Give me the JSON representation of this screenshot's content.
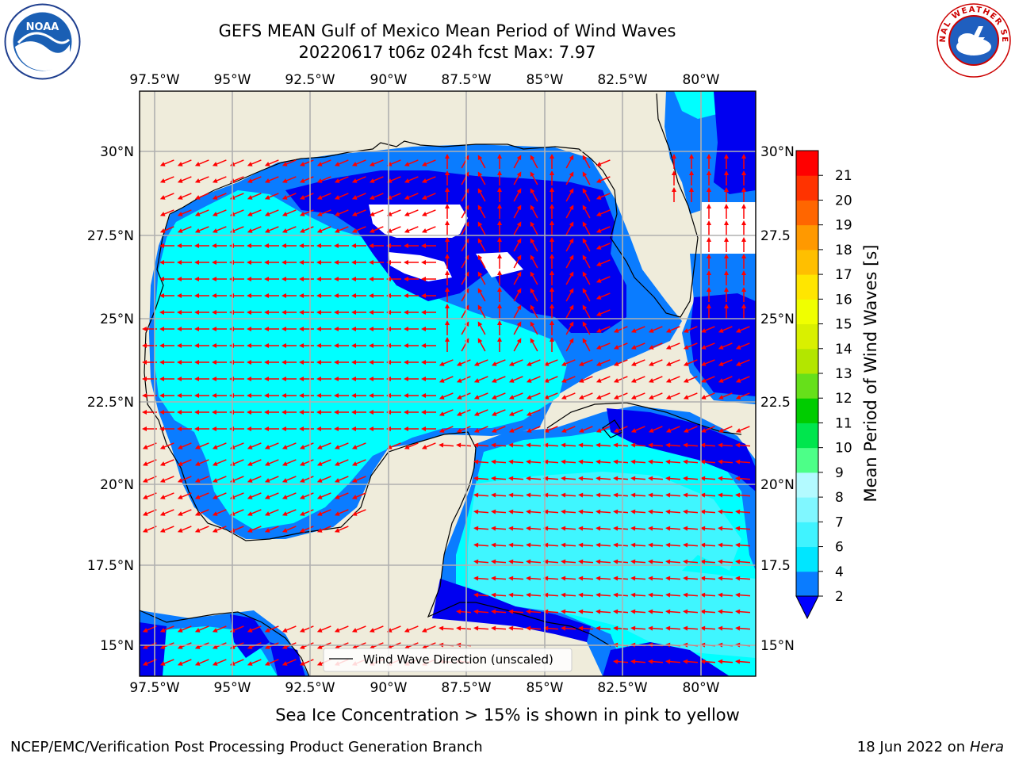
{
  "title": {
    "line1": "GEFS MEAN Gulf of Mexico Mean Period of Wind Waves",
    "line2": "20220617 t06z 024h fcst   Max: 7.97"
  },
  "axes": {
    "lon_labels": [
      "97.5°W",
      "95°W",
      "92.5°W",
      "90°W",
      "87.5°W",
      "85°W",
      "82.5°W",
      "80°W"
    ],
    "lat_labels_left": [
      "30°N",
      "27.5°N",
      "25°N",
      "22.5°N",
      "20°N",
      "17.5°N",
      "15°N"
    ],
    "lat_labels_right": [
      "30°N",
      "27.5",
      "25°N",
      "22.5",
      "20°N",
      "17.5",
      "15°N"
    ]
  },
  "legend": {
    "label": "Wind Wave Direction (unscaled)"
  },
  "colorbar": {
    "label": "Mean Period of Wind Waves [s]",
    "ticks": [
      "2",
      "4",
      "6",
      "7",
      "8",
      "9",
      "10",
      "11",
      "12",
      "13",
      "14",
      "15",
      "16",
      "17",
      "18",
      "19",
      "20",
      "21"
    ],
    "colors": [
      "#0a7cff",
      "#00e6ff",
      "#40f3ff",
      "#80f7ff",
      "#b3faff",
      "#4dff88",
      "#00e64d",
      "#00cc00",
      "#66e01a",
      "#b3e600",
      "#d9f000",
      "#f0ff00",
      "#ffe600",
      "#ffbf00",
      "#ff9900",
      "#ff6600",
      "#ff3300",
      "#ff0000"
    ],
    "under_color": "#0000ff"
  },
  "colors": {
    "land": "#efecdb",
    "no_data": "#ffffff",
    "level_0_2": "#0000f0",
    "level_2_4": "#0a7cff",
    "level_4_6": "#00ffff",
    "level_6_8": "#3ff6ff",
    "arrows": "#ff0000",
    "grid": "#b0b0b0"
  },
  "subnote": "Sea Ice Concentration > 15% is shown in pink to yellow",
  "footer": {
    "credit": "NCEP/EMC/Verification Post Processing Product Generation Branch",
    "date": "18 Jun 2022 on",
    "host": "Hera"
  },
  "logos": {
    "left": "NOAA",
    "right": "NATIONAL WEATHER SERVICE"
  }
}
